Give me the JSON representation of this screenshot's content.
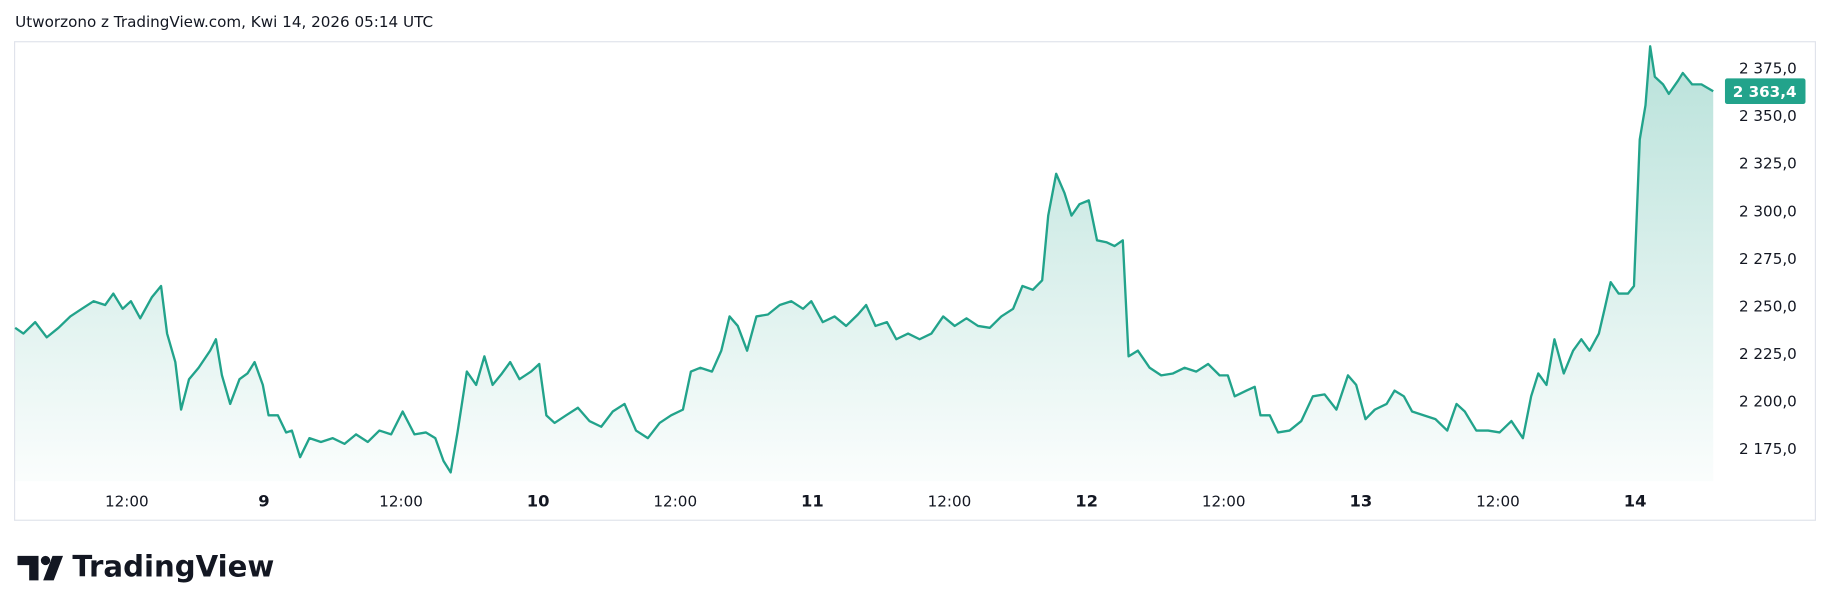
{
  "header": {
    "text": "Utworzono z TradingView.com, Kwi 14, 2026 05:14 UTC"
  },
  "footer": {
    "brand": "TradingView"
  },
  "chart_data": {
    "type": "area",
    "color": "#22a38b",
    "xlim": [
      8.093,
      14.315
    ],
    "ylim": [
      2158.4,
      2389.1
    ],
    "xticks": [
      {
        "value": 8.5,
        "label": "12:00"
      },
      9,
      {
        "value": 9.5,
        "label": "12:00"
      },
      10,
      {
        "value": 10.5,
        "label": "12:00"
      },
      11,
      {
        "value": 11.5,
        "label": "12:00"
      },
      12,
      {
        "value": 12.5,
        "label": "12:00"
      },
      13,
      {
        "value": 13.5,
        "label": "12:00"
      },
      14
    ],
    "yticks": [
      {
        "value": 2175,
        "label": "2 175,0"
      },
      {
        "value": 2200,
        "label": "2 200,0"
      },
      {
        "value": 2225,
        "label": "2 225,0"
      },
      {
        "value": 2250,
        "label": "2 250,0"
      },
      {
        "value": 2275,
        "label": "2 275,0"
      },
      {
        "value": 2300,
        "label": "2 300,0"
      },
      {
        "value": 2325,
        "label": "2 325,0"
      },
      {
        "value": 2350,
        "label": "2 350,0"
      },
      {
        "value": 2375,
        "label": "2 375,0"
      }
    ],
    "last_price": {
      "value": 2363.4,
      "label": "2 363,4"
    },
    "x": [
      8.093,
      8.123,
      8.166,
      8.208,
      8.251,
      8.294,
      8.336,
      8.379,
      8.421,
      8.451,
      8.485,
      8.515,
      8.549,
      8.591,
      8.625,
      8.647,
      8.677,
      8.698,
      8.727,
      8.762,
      8.804,
      8.825,
      8.847,
      8.877,
      8.911,
      8.94,
      8.966,
      8.996,
      9.017,
      9.051,
      9.081,
      9.102,
      9.132,
      9.166,
      9.208,
      9.251,
      9.294,
      9.336,
      9.379,
      9.421,
      9.464,
      9.506,
      9.549,
      9.591,
      9.625,
      9.655,
      9.681,
      9.706,
      9.74,
      9.774,
      9.804,
      9.834,
      9.868,
      9.898,
      9.932,
      9.974,
      10.004,
      10.03,
      10.06,
      10.102,
      10.145,
      10.187,
      10.23,
      10.272,
      10.315,
      10.357,
      10.4,
      10.443,
      10.485,
      10.528,
      10.557,
      10.591,
      10.634,
      10.668,
      10.698,
      10.728,
      10.762,
      10.796,
      10.838,
      10.881,
      10.923,
      10.966,
      10.996,
      11.038,
      11.081,
      11.123,
      11.166,
      11.196,
      11.23,
      11.272,
      11.306,
      11.349,
      11.391,
      11.434,
      11.477,
      11.519,
      11.562,
      11.604,
      11.647,
      11.689,
      11.732,
      11.766,
      11.804,
      11.838,
      11.86,
      11.889,
      11.919,
      11.945,
      11.974,
      12.008,
      12.038,
      12.072,
      12.102,
      12.132,
      12.153,
      12.187,
      12.23,
      12.272,
      12.315,
      12.357,
      12.4,
      12.443,
      12.485,
      12.515,
      12.54,
      12.583,
      12.613,
      12.634,
      12.668,
      12.698,
      12.74,
      12.783,
      12.825,
      12.868,
      12.911,
      12.953,
      12.983,
      13.017,
      13.051,
      13.094,
      13.123,
      13.157,
      13.187,
      13.23,
      13.272,
      13.315,
      13.349,
      13.379,
      13.421,
      13.464,
      13.506,
      13.549,
      13.591,
      13.621,
      13.647,
      13.677,
      13.706,
      13.74,
      13.774,
      13.804,
      13.834,
      13.868,
      13.889,
      13.911,
      13.94,
      13.974,
      13.996,
      14.017,
      14.038,
      14.055,
      14.072,
      14.102,
      14.123,
      14.157,
      14.174,
      14.208,
      14.242,
      14.285
    ],
    "values": [
      2239,
      2236,
      2242,
      2234,
      2239,
      2245,
      2249,
      2253,
      2251,
      2257,
      2249,
      2253,
      2244,
      2255,
      2261,
      2236,
      2221,
      2196,
      2212,
      2218,
      2227,
      2233,
      2214,
      2199,
      2212,
      2215,
      2221,
      2209,
      2193,
      2193,
      2184,
      2185,
      2171,
      2181,
      2179,
      2181,
      2178,
      2183,
      2179,
      2185,
      2183,
      2195,
      2183,
      2184,
      2181,
      2169,
      2163,
      2184,
      2216,
      2209,
      2224,
      2209,
      2215,
      2221,
      2212,
      2216,
      2220,
      2193,
      2189,
      2193,
      2197,
      2190,
      2187,
      2195,
      2199,
      2185,
      2181,
      2189,
      2193,
      2196,
      2216,
      2218,
      2216,
      2227,
      2245,
      2240,
      2227,
      2245,
      2246,
      2251,
      2253,
      2249,
      2253,
      2242,
      2245,
      2240,
      2246,
      2251,
      2240,
      2242,
      2233,
      2236,
      2233,
      2236,
      2245,
      2240,
      2244,
      2240,
      2239,
      2245,
      2249,
      2261,
      2259,
      2264,
      2298,
      2320,
      2310,
      2298,
      2304,
      2306,
      2285,
      2284,
      2282,
      2285,
      2224,
      2227,
      2218,
      2214,
      2215,
      2218,
      2216,
      2220,
      2214,
      2214,
      2203,
      2206,
      2208,
      2193,
      2193,
      2184,
      2185,
      2190,
      2203,
      2204,
      2196,
      2214,
      2209,
      2191,
      2196,
      2199,
      2206,
      2203,
      2195,
      2193,
      2191,
      2185,
      2199,
      2195,
      2185,
      2185,
      2184,
      2190,
      2181,
      2203,
      2215,
      2209,
      2233,
      2215,
      2227,
      2233,
      2227,
      2236,
      2249,
      2263,
      2257,
      2257,
      2261,
      2338,
      2356,
      2387,
      2371,
      2367,
      2362,
      2369,
      2373,
      2367,
      2367,
      2363.4
    ]
  }
}
